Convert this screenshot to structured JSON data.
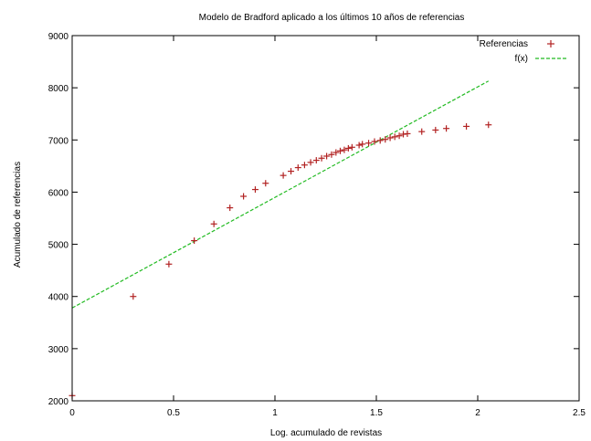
{
  "chart_data": {
    "type": "scatter",
    "title": "Modelo de Bradford aplicado a los últimos 10 años de referencias",
    "xlabel": "Log. acumulado de revistas",
    "ylabel": "Acumulado de referencias",
    "xlim": [
      0,
      2.5
    ],
    "ylim": [
      2000,
      9000
    ],
    "xticks": [
      "0",
      "0.5",
      "1",
      "1.5",
      "2",
      "2.5"
    ],
    "yticks": [
      "2000",
      "3000",
      "4000",
      "5000",
      "6000",
      "7000",
      "8000",
      "9000"
    ],
    "grid": false,
    "legend_position": "top-right",
    "colors": {
      "points": "#b22222",
      "fit": "#22bb22"
    },
    "series": [
      {
        "name": "Referencias",
        "marker": "+",
        "points": [
          [
            0.0,
            2100
          ],
          [
            0.301,
            4000
          ],
          [
            0.477,
            4620
          ],
          [
            0.602,
            5070
          ],
          [
            0.699,
            5390
          ],
          [
            0.778,
            5700
          ],
          [
            0.845,
            5920
          ],
          [
            0.903,
            6050
          ],
          [
            0.954,
            6170
          ],
          [
            1.041,
            6320
          ],
          [
            1.079,
            6400
          ],
          [
            1.114,
            6470
          ],
          [
            1.146,
            6520
          ],
          [
            1.176,
            6570
          ],
          [
            1.204,
            6610
          ],
          [
            1.23,
            6650
          ],
          [
            1.255,
            6690
          ],
          [
            1.279,
            6720
          ],
          [
            1.301,
            6760
          ],
          [
            1.322,
            6790
          ],
          [
            1.342,
            6810
          ],
          [
            1.362,
            6840
          ],
          [
            1.38,
            6860
          ],
          [
            1.415,
            6900
          ],
          [
            1.431,
            6920
          ],
          [
            1.462,
            6940
          ],
          [
            1.491,
            6970
          ],
          [
            1.519,
            6990
          ],
          [
            1.544,
            7010
          ],
          [
            1.568,
            7040
          ],
          [
            1.591,
            7060
          ],
          [
            1.613,
            7080
          ],
          [
            1.633,
            7110
          ],
          [
            1.653,
            7120
          ],
          [
            1.724,
            7160
          ],
          [
            1.792,
            7190
          ],
          [
            1.845,
            7220
          ],
          [
            1.944,
            7260
          ],
          [
            2.053,
            7290
          ]
        ]
      },
      {
        "name": "f(x)",
        "style": "dashed-line",
        "points": [
          [
            0.0,
            3780
          ],
          [
            2.053,
            8130
          ]
        ]
      }
    ]
  }
}
